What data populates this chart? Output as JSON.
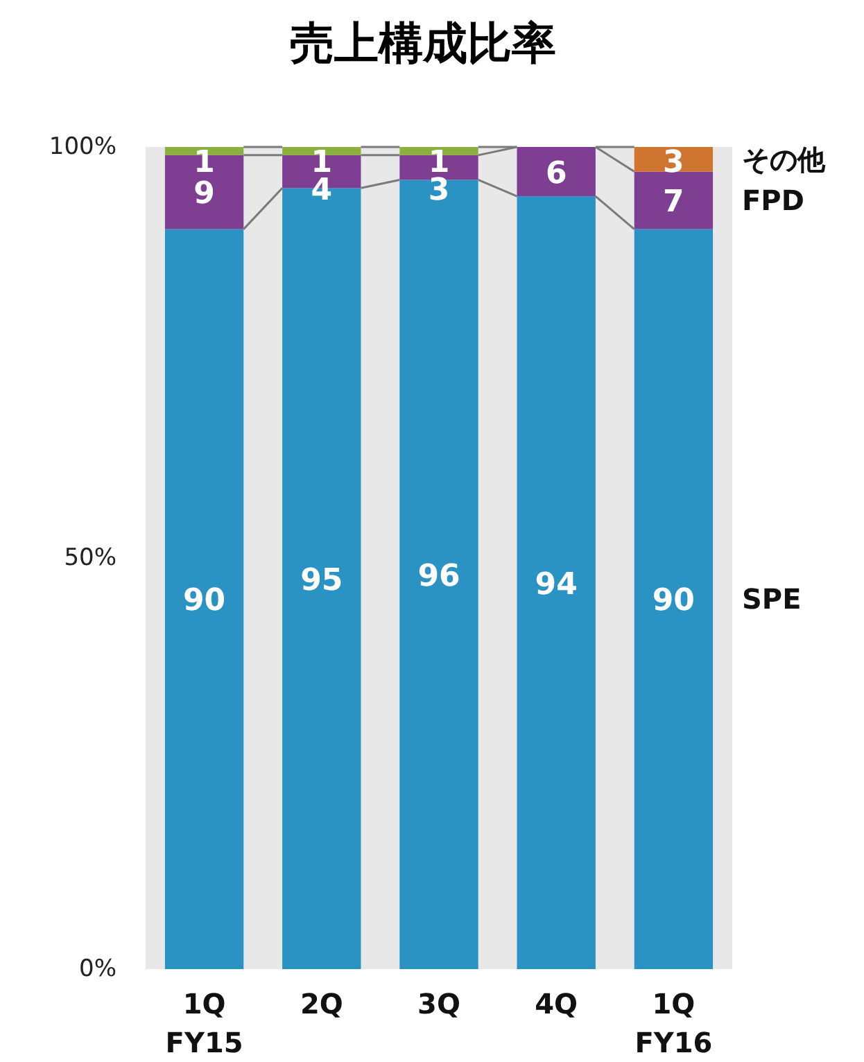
{
  "chart_data": {
    "type": "bar",
    "title": "売上構成比率",
    "categories": [
      "1Q\nFY15",
      "2Q",
      "3Q",
      "4Q",
      "1Q\nFY16"
    ],
    "stacked": true,
    "data_labels": true,
    "series": [
      {
        "name": "SPE",
        "color": "#2a93c3",
        "values": [
          90,
          95,
          96,
          94,
          90
        ]
      },
      {
        "name": "FPD",
        "color": "#7e3f93",
        "values": [
          9,
          4,
          3,
          6,
          7
        ]
      },
      {
        "name": "その他",
        "colors": [
          "#8bb040",
          "#8bb040",
          "#8bb040",
          null,
          "#d0752f"
        ],
        "values": [
          1,
          1,
          1,
          0,
          3
        ],
        "value_labels": [
          "1",
          "1",
          "1",
          null,
          "3"
        ]
      }
    ],
    "ylim": [
      0,
      100
    ],
    "yticks": [
      {
        "value": 0,
        "label": "0%"
      },
      {
        "value": 50,
        "label": "50%"
      },
      {
        "value": 100,
        "label": "100%"
      }
    ]
  }
}
